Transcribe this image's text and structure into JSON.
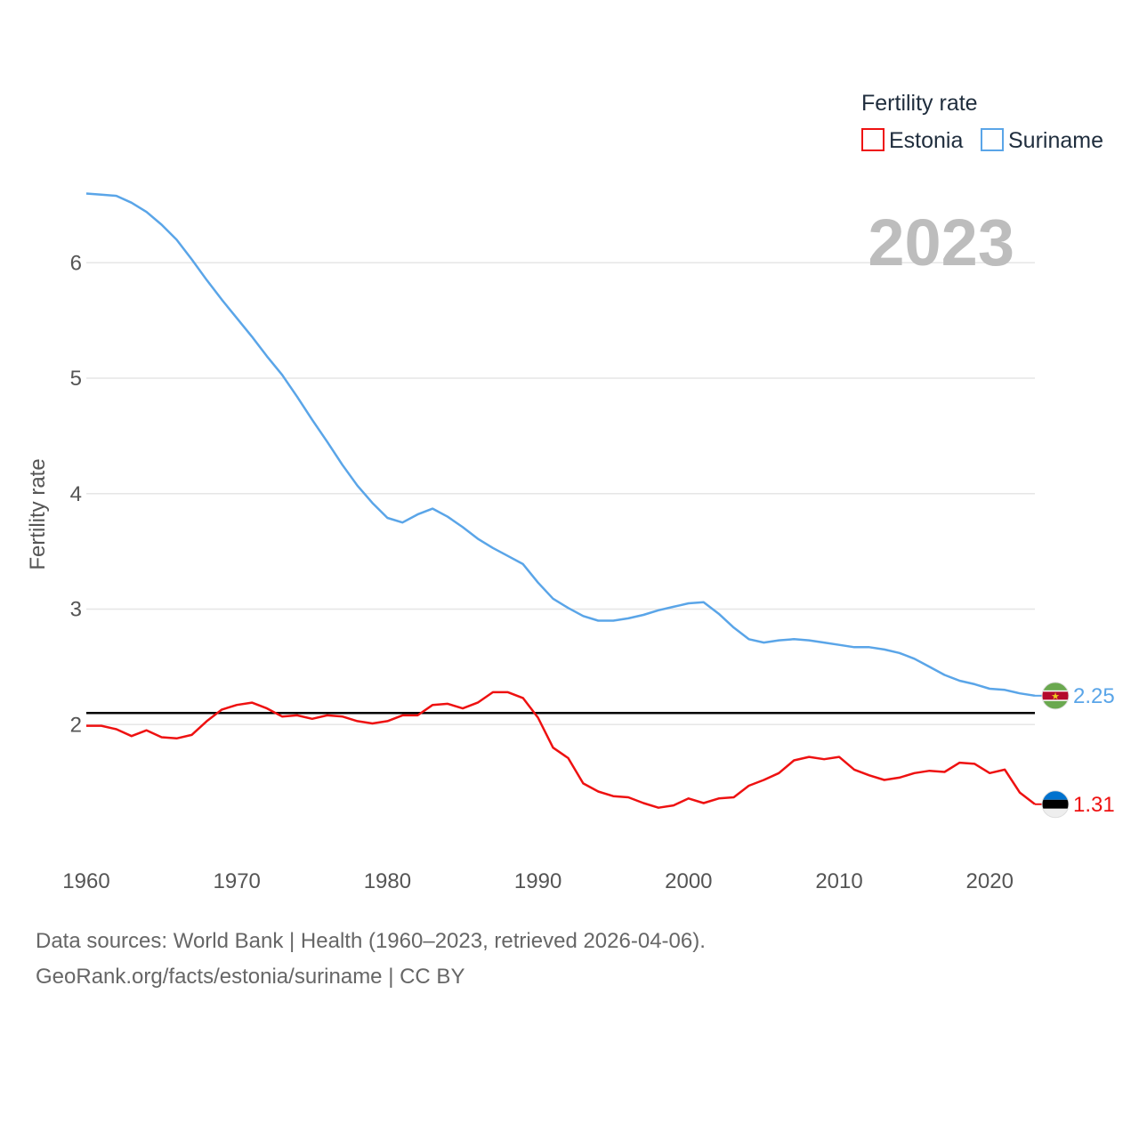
{
  "chart_data": {
    "type": "line",
    "title": "Fertility rate",
    "year_stamp": "2023",
    "xlabel": "",
    "ylabel": "Fertility rate",
    "xlim": [
      1960,
      2023
    ],
    "ylim": [
      1.0,
      6.75
    ],
    "x_ticks": [
      1960,
      1970,
      1980,
      1990,
      2000,
      2010,
      2020
    ],
    "y_ticks": [
      2,
      3,
      4,
      5,
      6
    ],
    "grid": true,
    "legend_position": "top-right",
    "reference_line": {
      "value": 2.1,
      "color": "#000000"
    },
    "x": [
      1960,
      1961,
      1962,
      1963,
      1964,
      1965,
      1966,
      1967,
      1968,
      1969,
      1970,
      1971,
      1972,
      1973,
      1974,
      1975,
      1976,
      1977,
      1978,
      1979,
      1980,
      1981,
      1982,
      1983,
      1984,
      1985,
      1986,
      1987,
      1988,
      1989,
      1990,
      1991,
      1992,
      1993,
      1994,
      1995,
      1996,
      1997,
      1998,
      1999,
      2000,
      2001,
      2002,
      2003,
      2004,
      2005,
      2006,
      2007,
      2008,
      2009,
      2010,
      2011,
      2012,
      2013,
      2014,
      2015,
      2016,
      2017,
      2018,
      2019,
      2020,
      2021,
      2022,
      2023
    ],
    "series": [
      {
        "name": "Estonia",
        "color": "#ee1111",
        "end_label": "1.31",
        "flag": "estonia-flag-icon",
        "values": [
          1.99,
          1.99,
          1.96,
          1.9,
          1.95,
          1.89,
          1.88,
          1.91,
          2.03,
          2.13,
          2.17,
          2.19,
          2.14,
          2.07,
          2.08,
          2.05,
          2.08,
          2.07,
          2.03,
          2.01,
          2.03,
          2.08,
          2.08,
          2.17,
          2.18,
          2.14,
          2.19,
          2.28,
          2.28,
          2.23,
          2.06,
          1.8,
          1.71,
          1.49,
          1.42,
          1.38,
          1.37,
          1.32,
          1.28,
          1.3,
          1.36,
          1.32,
          1.36,
          1.37,
          1.47,
          1.52,
          1.58,
          1.69,
          1.72,
          1.7,
          1.72,
          1.61,
          1.56,
          1.52,
          1.54,
          1.58,
          1.6,
          1.59,
          1.67,
          1.66,
          1.58,
          1.61,
          1.41,
          1.31
        ]
      },
      {
        "name": "Suriname",
        "color": "#5aa5e8",
        "end_label": "2.25",
        "flag": "suriname-flag-icon",
        "values": [
          6.6,
          6.59,
          6.58,
          6.52,
          6.44,
          6.33,
          6.2,
          6.03,
          5.85,
          5.68,
          5.52,
          5.36,
          5.19,
          5.03,
          4.84,
          4.64,
          4.45,
          4.25,
          4.07,
          3.92,
          3.79,
          3.75,
          3.82,
          3.87,
          3.8,
          3.71,
          3.61,
          3.53,
          3.46,
          3.39,
          3.23,
          3.09,
          3.01,
          2.94,
          2.9,
          2.9,
          2.92,
          2.95,
          2.99,
          3.02,
          3.05,
          3.06,
          2.96,
          2.84,
          2.74,
          2.71,
          2.73,
          2.74,
          2.73,
          2.71,
          2.69,
          2.67,
          2.67,
          2.65,
          2.62,
          2.57,
          2.5,
          2.43,
          2.38,
          2.35,
          2.31,
          2.3,
          2.27,
          2.25
        ]
      }
    ]
  },
  "footer": {
    "sources": "Data sources: World Bank | Health (1960–2023, retrieved 2026-04-06).",
    "link": "GeoRank.org/facts/estonia/suriname | CC BY"
  }
}
